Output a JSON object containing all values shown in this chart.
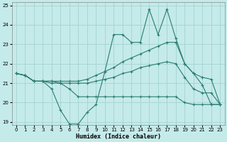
{
  "xlabel": "Humidex (Indice chaleur)",
  "xlim": [
    -0.5,
    23.5
  ],
  "ylim": [
    18.85,
    25.15
  ],
  "yticks": [
    19,
    20,
    21,
    22,
    23,
    24,
    25
  ],
  "xticks": [
    0,
    1,
    2,
    3,
    4,
    5,
    6,
    7,
    8,
    9,
    10,
    11,
    12,
    13,
    14,
    15,
    16,
    17,
    18,
    19,
    20,
    21,
    22,
    23
  ],
  "bg_color": "#c5eaea",
  "grid_color": "#9ecece",
  "line_color": "#2a7d72",
  "series": {
    "current": [
      21.5,
      21.4,
      21.1,
      21.1,
      20.7,
      19.6,
      18.9,
      18.9,
      19.5,
      19.9,
      21.6,
      23.5,
      23.5,
      23.1,
      23.1,
      24.8,
      23.5,
      24.8,
      23.3,
      22.0,
      21.5,
      20.9,
      19.9,
      19.9
    ],
    "max": [
      21.5,
      21.4,
      21.1,
      21.1,
      21.1,
      21.1,
      21.1,
      21.1,
      21.2,
      21.4,
      21.6,
      21.8,
      22.1,
      22.3,
      22.5,
      22.7,
      22.9,
      23.1,
      23.1,
      22.0,
      21.5,
      21.3,
      21.2,
      19.9
    ],
    "min": [
      21.5,
      21.4,
      21.1,
      21.1,
      21.0,
      21.0,
      20.7,
      20.3,
      20.3,
      20.3,
      20.3,
      20.3,
      20.3,
      20.3,
      20.3,
      20.3,
      20.3,
      20.3,
      20.3,
      20.0,
      19.9,
      19.9,
      19.9,
      19.9
    ],
    "mean": [
      21.5,
      21.4,
      21.1,
      21.1,
      21.1,
      21.0,
      21.0,
      21.0,
      21.0,
      21.1,
      21.2,
      21.3,
      21.5,
      21.6,
      21.8,
      21.9,
      22.0,
      22.1,
      22.0,
      21.3,
      20.7,
      20.5,
      20.5,
      19.9
    ]
  }
}
